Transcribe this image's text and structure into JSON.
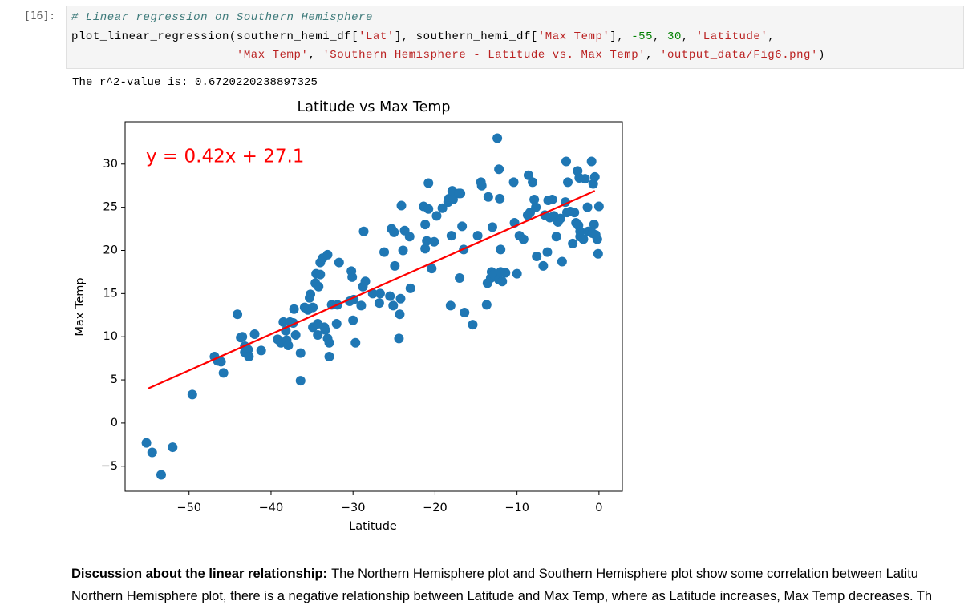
{
  "cell": {
    "prompt": "[16]:",
    "code": [
      [
        {
          "text": "# Linear regression on Southern Hemisphere",
          "color": "#3d7a7a",
          "style": "italic"
        }
      ],
      [
        {
          "text": "plot_linear_regression(southern_hemi_df[",
          "color": "#000000"
        },
        {
          "text": "'Lat'",
          "color": "#ba2121"
        },
        {
          "text": "], southern_hemi_df[",
          "color": "#000000"
        },
        {
          "text": "'Max Temp'",
          "color": "#ba2121"
        },
        {
          "text": "], ",
          "color": "#000000"
        },
        {
          "text": "-55",
          "color": "#008000"
        },
        {
          "text": ", ",
          "color": "#000000"
        },
        {
          "text": "30",
          "color": "#008000"
        },
        {
          "text": ", ",
          "color": "#000000"
        },
        {
          "text": "'Latitude'",
          "color": "#ba2121"
        },
        {
          "text": ",",
          "color": "#000000"
        }
      ],
      [
        {
          "text": "                       ",
          "color": "#000000"
        },
        {
          "text": "'Max Temp'",
          "color": "#ba2121"
        },
        {
          "text": ", ",
          "color": "#000000"
        },
        {
          "text": "'Southern Hemisphere - Latitude vs. Max Temp'",
          "color": "#ba2121"
        },
        {
          "text": ", ",
          "color": "#000000"
        },
        {
          "text": "'output_data/Fig6.png'",
          "color": "#ba2121"
        },
        {
          "text": ")",
          "color": "#000000"
        }
      ]
    ],
    "output": "The r^2-value is: 0.6720220238897325"
  },
  "chart_data": {
    "type": "scatter",
    "title": "Latitude vs Max Temp",
    "xlabel": "Latitude",
    "ylabel": "Max Temp",
    "annotation": "y = 0.42x + 27.1",
    "annotation_color": "#ff0000",
    "xlim": [
      -57.8,
      2.85
    ],
    "ylim": [
      -7.9,
      34.9
    ],
    "xticks": [
      {
        "value": -50,
        "label": "−50"
      },
      {
        "value": -40,
        "label": "−40"
      },
      {
        "value": -30,
        "label": "−30"
      },
      {
        "value": -20,
        "label": "−20"
      },
      {
        "value": -10,
        "label": "−10"
      },
      0
    ],
    "yticks": [
      {
        "value": -5,
        "label": "−5"
      },
      0,
      5,
      10,
      15,
      20,
      25,
      30
    ],
    "color": "#1f77b4",
    "x": [
      -55.2,
      -54.5,
      -53.4,
      -52.0,
      -49.6,
      -46.9,
      -46.5,
      -46.1,
      -45.8,
      -44.1,
      -43.7,
      -43.5,
      -43.2,
      -43.2,
      -42.8,
      -42.7,
      -42.0,
      -41.2,
      -39.2,
      -38.8,
      -38.5,
      -38.2,
      -38.1,
      -37.9,
      -37.7,
      -37.3,
      -37.2,
      -37.0,
      -36.4,
      -36.4,
      -35.9,
      -35.5,
      -35.3,
      -35.2,
      -34.9,
      -34.9,
      -34.6,
      -34.5,
      -34.3,
      -34.3,
      -34.2,
      -34.0,
      -34.0,
      -33.7,
      -33.5,
      -33.4,
      -33.1,
      -33.1,
      -32.9,
      -32.9,
      -32.6,
      -32.0,
      -31.9,
      -31.7,
      -30.4,
      -30.2,
      -30.1,
      -30.0,
      -29.9,
      -29.7,
      -29.0,
      -28.8,
      -28.7,
      -28.5,
      -27.6,
      -26.8,
      -26.7,
      -26.2,
      -25.5,
      -25.3,
      -25.1,
      -25.0,
      -24.9,
      -24.4,
      -24.3,
      -24.2,
      -24.1,
      -23.9,
      -23.7,
      -23.1,
      -23.0,
      -21.4,
      -21.2,
      -21.2,
      -21.0,
      -20.8,
      -20.8,
      -20.4,
      -20.1,
      -19.8,
      -19.1,
      -18.4,
      -18.3,
      -18.1,
      -18.0,
      -17.9,
      -17.8,
      -17.1,
      -17.0,
      -16.9,
      -16.7,
      -16.5,
      -16.4,
      -15.4,
      -14.8,
      -14.4,
      -14.3,
      -13.7,
      -13.5,
      -13.6,
      -13.2,
      -13.1,
      -13.0,
      -12.8,
      -12.4,
      -12.2,
      -12.2,
      -12.1,
      -12.0,
      -12.0,
      -11.8,
      -11.4,
      -10.4,
      -10.3,
      -10.0,
      -9.7,
      -9.2,
      -8.7,
      -8.6,
      -8.4,
      -8.1,
      -7.9,
      -7.7,
      -7.6,
      -6.8,
      -6.6,
      -6.3,
      -6.2,
      -6.0,
      -5.7,
      -5.5,
      -5.2,
      -5.0,
      -4.7,
      -4.5,
      -4.1,
      -4.0,
      -3.9,
      -3.8,
      -3.5,
      -3.2,
      -3.0,
      -2.8,
      -2.6,
      -2.5,
      -2.4,
      -2.3,
      -2.3,
      -1.9,
      -1.7,
      -1.4,
      -1.3,
      -0.9,
      -0.8,
      -0.7,
      -0.6,
      -0.5,
      -0.4,
      -0.2,
      -0.1,
      0.0
    ],
    "values": [
      -2.3,
      -3.4,
      -6.0,
      -2.8,
      3.3,
      7.7,
      7.2,
      7.1,
      5.8,
      12.6,
      9.9,
      10.0,
      8.9,
      8.2,
      8.5,
      7.7,
      10.3,
      8.4,
      9.7,
      9.3,
      11.7,
      10.7,
      9.6,
      9.0,
      11.7,
      11.6,
      13.2,
      10.2,
      4.9,
      8.1,
      13.4,
      13.1,
      14.5,
      14.9,
      11.1,
      13.4,
      16.2,
      17.3,
      11.5,
      10.2,
      15.8,
      17.2,
      18.6,
      19.1,
      11.1,
      10.8,
      19.5,
      9.8,
      9.3,
      7.7,
      13.7,
      11.5,
      13.7,
      18.6,
      14.1,
      17.6,
      16.9,
      11.9,
      14.3,
      9.3,
      13.6,
      15.8,
      22.2,
      16.4,
      15.0,
      13.9,
      15.0,
      19.8,
      14.7,
      22.5,
      13.6,
      22.1,
      18.2,
      9.8,
      12.6,
      14.4,
      25.2,
      20.0,
      22.3,
      21.6,
      15.6,
      25.1,
      23.0,
      20.2,
      21.1,
      24.8,
      27.8,
      17.9,
      21.0,
      24.0,
      24.9,
      25.6,
      26.0,
      13.6,
      21.7,
      26.9,
      25.9,
      26.6,
      16.8,
      26.6,
      22.8,
      20.1,
      12.8,
      11.4,
      21.7,
      27.9,
      27.5,
      13.7,
      26.2,
      16.2,
      16.8,
      17.5,
      22.7,
      17.2,
      33.0,
      29.4,
      16.6,
      26.0,
      20.1,
      17.5,
      16.4,
      17.4,
      27.9,
      23.2,
      17.3,
      21.7,
      21.3,
      24.1,
      28.7,
      24.4,
      27.9,
      25.9,
      25.0,
      19.3,
      18.2,
      24.1,
      19.8,
      25.8,
      23.8,
      25.9,
      24.0,
      21.6,
      23.3,
      23.7,
      18.7,
      25.6,
      30.3,
      24.4,
      27.9,
      24.5,
      20.8,
      24.4,
      23.2,
      29.2,
      22.9,
      28.4,
      21.6,
      22.2,
      21.3,
      28.3,
      25.0,
      22.2,
      30.3,
      22.0,
      27.7,
      23.0,
      28.5,
      21.8,
      21.3,
      19.6,
      25.1
    ],
    "fit_line": {
      "x": [
        -55,
        -0.5
      ],
      "values": [
        4.0,
        26.9
      ],
      "color": "#ff0000"
    }
  },
  "markdown": {
    "bold": "Discussion about the linear relationship:",
    "lines": [
      "The Northern Hemisphere plot and Southern Hemisphere plot show some correlation between Latitu",
      "Northern Hemisphere plot, there is a negative relationship between Latitude and Max Temp, where as Latitude increases, Max Temp decreases. Th"
    ]
  }
}
